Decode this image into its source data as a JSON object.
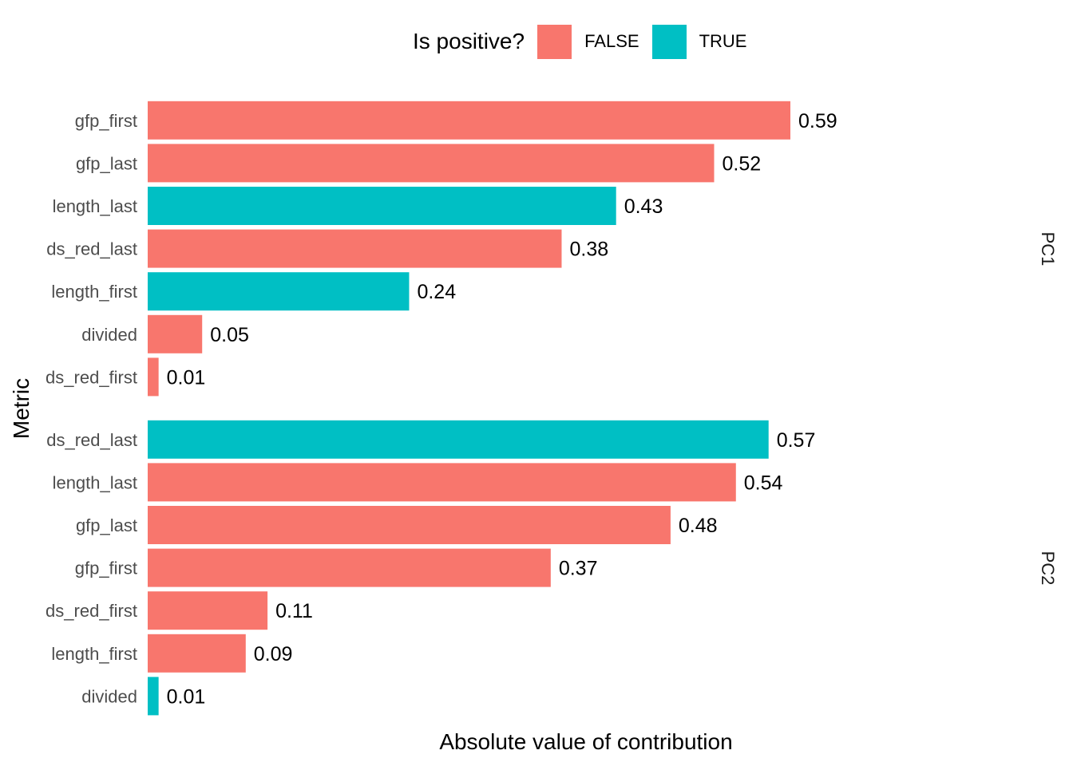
{
  "chart_data": {
    "type": "bar",
    "orientation": "horizontal",
    "xlabel": "Absolute value of contribution",
    "ylabel": "Metric",
    "xlim": [
      0,
      0.8
    ],
    "grid": false,
    "legend": {
      "title": "Is positive?",
      "position": "top",
      "entries": [
        {
          "label": "FALSE",
          "color": "#F8766D"
        },
        {
          "label": "TRUE",
          "color": "#00BFC4"
        }
      ]
    },
    "facets": [
      {
        "name": "PC1",
        "bars": [
          {
            "metric": "gfp_first",
            "value": 0.59,
            "label": "0.59",
            "positive": "FALSE"
          },
          {
            "metric": "gfp_last",
            "value": 0.52,
            "label": "0.52",
            "positive": "FALSE"
          },
          {
            "metric": "length_last",
            "value": 0.43,
            "label": "0.43",
            "positive": "TRUE"
          },
          {
            "metric": "ds_red_last",
            "value": 0.38,
            "label": "0.38",
            "positive": "FALSE"
          },
          {
            "metric": "length_first",
            "value": 0.24,
            "label": "0.24",
            "positive": "TRUE"
          },
          {
            "metric": "divided",
            "value": 0.05,
            "label": "0.05",
            "positive": "FALSE"
          },
          {
            "metric": "ds_red_first",
            "value": 0.01,
            "label": "0.01",
            "positive": "FALSE"
          }
        ]
      },
      {
        "name": "PC2",
        "bars": [
          {
            "metric": "ds_red_last",
            "value": 0.57,
            "label": "0.57",
            "positive": "TRUE"
          },
          {
            "metric": "length_last",
            "value": 0.54,
            "label": "0.54",
            "positive": "FALSE"
          },
          {
            "metric": "gfp_last",
            "value": 0.48,
            "label": "0.48",
            "positive": "FALSE"
          },
          {
            "metric": "gfp_first",
            "value": 0.37,
            "label": "0.37",
            "positive": "FALSE"
          },
          {
            "metric": "ds_red_first",
            "value": 0.11,
            "label": "0.11",
            "positive": "FALSE"
          },
          {
            "metric": "length_first",
            "value": 0.09,
            "label": "0.09",
            "positive": "FALSE"
          },
          {
            "metric": "divided",
            "value": 0.01,
            "label": "0.01",
            "positive": "TRUE"
          }
        ]
      }
    ]
  }
}
